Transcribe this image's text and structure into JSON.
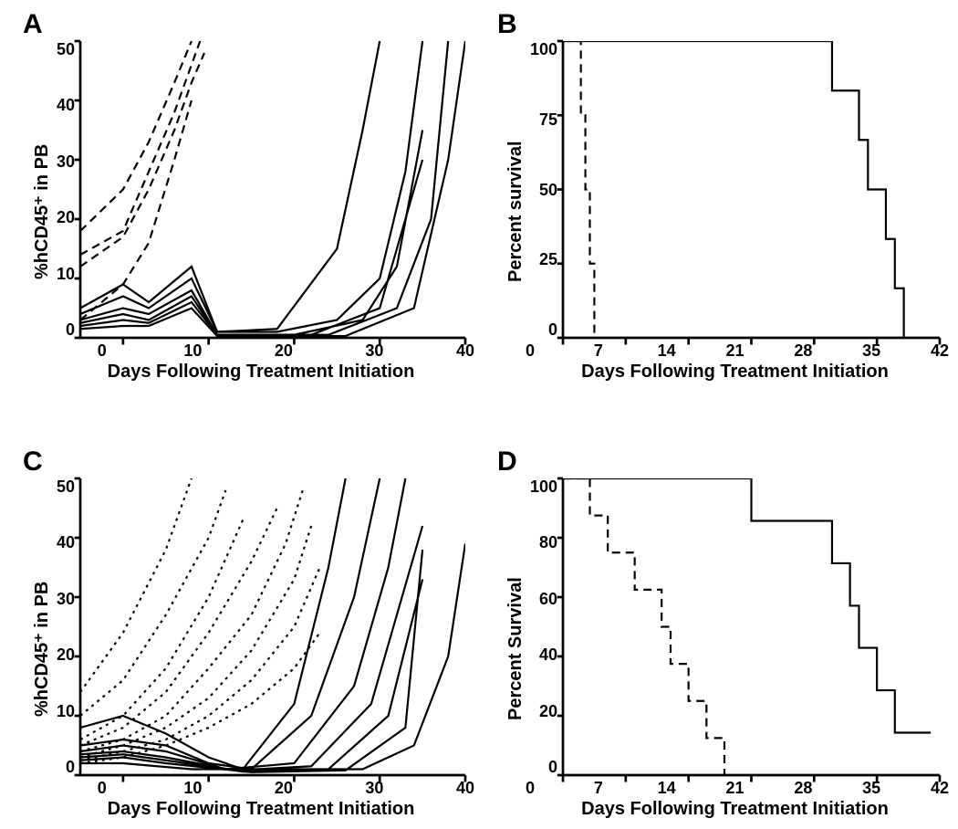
{
  "global": {
    "background_color": "#ffffff",
    "axis_color": "#000000",
    "line_color": "#000000",
    "tick_fontsize": 18,
    "label_fontsize": 20,
    "panel_label_fontsize": 30,
    "font_family": "Arial, Helvetica, sans-serif",
    "font_weight_labels": "bold",
    "line_width_solid": 2.2,
    "line_width_dashed": 2.2,
    "axis_line_width": 2.7,
    "tick_length": 6
  },
  "panels": {
    "A": {
      "label": "A",
      "type": "line",
      "xlabel": "Days Following Treatment Initiation",
      "ylabel": "%hCD45⁺ in PB",
      "xlim": [
        -5,
        40
      ],
      "xticks": [
        0,
        10,
        20,
        30,
        40
      ],
      "ylim": [
        0,
        50
      ],
      "yticks": [
        0,
        10,
        20,
        30,
        40,
        50
      ],
      "series": [
        {
          "style": "dashed",
          "points": [
            [
              -5,
              18
            ],
            [
              0,
              25
            ],
            [
              3,
              33
            ],
            [
              6,
              43
            ],
            [
              8,
              50
            ]
          ]
        },
        {
          "style": "dashed",
          "points": [
            [
              -5,
              14
            ],
            [
              0,
              18
            ],
            [
              3,
              28
            ],
            [
              6,
              38
            ],
            [
              8,
              46
            ],
            [
              9,
              50
            ]
          ]
        },
        {
          "style": "dashed",
          "points": [
            [
              -5,
              12
            ],
            [
              0,
              17
            ],
            [
              3,
              25
            ],
            [
              6,
              35
            ],
            [
              8,
              43
            ],
            [
              9.5,
              48
            ]
          ]
        },
        {
          "style": "dashed",
          "points": [
            [
              -5,
              3
            ],
            [
              0,
              9
            ],
            [
              3,
              16
            ],
            [
              6,
              30
            ],
            [
              8,
              40
            ]
          ]
        },
        {
          "style": "solid",
          "points": [
            [
              -5,
              5
            ],
            [
              0,
              9
            ],
            [
              3,
              6
            ],
            [
              8,
              12
            ],
            [
              11,
              1
            ],
            [
              18,
              1.5
            ],
            [
              25,
              15
            ],
            [
              28,
              35
            ],
            [
              30,
              50
            ]
          ]
        },
        {
          "style": "solid",
          "points": [
            [
              -5,
              4
            ],
            [
              0,
              7
            ],
            [
              3,
              5
            ],
            [
              8,
              10
            ],
            [
              11,
              1
            ],
            [
              18,
              1
            ],
            [
              25,
              3
            ],
            [
              30,
              10
            ],
            [
              33,
              28
            ],
            [
              35,
              50
            ]
          ]
        },
        {
          "style": "solid",
          "points": [
            [
              -5,
              3
            ],
            [
              0,
              5
            ],
            [
              3,
              4
            ],
            [
              8,
              8
            ],
            [
              11,
              0.5
            ],
            [
              20,
              0.5
            ],
            [
              28,
              3
            ],
            [
              32,
              12
            ],
            [
              35,
              35
            ]
          ]
        },
        {
          "style": "solid",
          "points": [
            [
              -5,
              2.5
            ],
            [
              0,
              4
            ],
            [
              3,
              3
            ],
            [
              8,
              7
            ],
            [
              11,
              0.5
            ],
            [
              22,
              0.5
            ],
            [
              30,
              5
            ],
            [
              35,
              30
            ]
          ]
        },
        {
          "style": "solid",
          "points": [
            [
              -5,
              2
            ],
            [
              0,
              3
            ],
            [
              3,
              2.5
            ],
            [
              8,
              6
            ],
            [
              11,
              0.5
            ],
            [
              24,
              0.5
            ],
            [
              32,
              5
            ],
            [
              36,
              20
            ],
            [
              38,
              50
            ]
          ]
        },
        {
          "style": "solid",
          "points": [
            [
              -5,
              1.5
            ],
            [
              0,
              2
            ],
            [
              3,
              2
            ],
            [
              8,
              5
            ],
            [
              11,
              0.3
            ],
            [
              26,
              0.3
            ],
            [
              34,
              5
            ],
            [
              38,
              30
            ],
            [
              40,
              50
            ]
          ]
        }
      ]
    },
    "B": {
      "label": "B",
      "type": "survival",
      "xlabel": "Days Following Treatment Initiation",
      "ylabel": "Percent survival",
      "xlim": [
        0,
        42
      ],
      "xticks": [
        0,
        7,
        14,
        21,
        28,
        35,
        42
      ],
      "ylim": [
        0,
        100
      ],
      "yticks": [
        0,
        25,
        50,
        75,
        100
      ],
      "series": [
        {
          "style": "solid",
          "steps": [
            [
              0,
              100
            ],
            [
              30,
              100
            ],
            [
              30,
              83.3
            ],
            [
              33,
              83.3
            ],
            [
              33,
              66.7
            ],
            [
              34,
              66.7
            ],
            [
              34,
              50
            ],
            [
              36,
              50
            ],
            [
              36,
              33.3
            ],
            [
              37,
              33.3
            ],
            [
              37,
              16.7
            ],
            [
              38,
              16.7
            ],
            [
              38,
              0
            ]
          ]
        },
        {
          "style": "dashed",
          "steps": [
            [
              0,
              100
            ],
            [
              2,
              100
            ],
            [
              2,
              75
            ],
            [
              2.5,
              75
            ],
            [
              2.5,
              50
            ],
            [
              3,
              50
            ],
            [
              3,
              25
            ],
            [
              3.5,
              25
            ],
            [
              3.5,
              0
            ]
          ]
        }
      ]
    },
    "C": {
      "label": "C",
      "type": "line",
      "xlabel": "Days Following Treatment Initiation",
      "ylabel": "%hCD45⁺ in PB",
      "xlim": [
        -5,
        40
      ],
      "xticks": [
        0,
        10,
        20,
        30,
        40
      ],
      "ylim": [
        0,
        50
      ],
      "yticks": [
        0,
        10,
        20,
        30,
        40,
        50
      ],
      "series": [
        {
          "style": "dotted",
          "points": [
            [
              -5,
              14
            ],
            [
              0,
              24
            ],
            [
              5,
              38
            ],
            [
              8,
              50
            ]
          ]
        },
        {
          "style": "dotted",
          "points": [
            [
              -5,
              10
            ],
            [
              0,
              16
            ],
            [
              5,
              27
            ],
            [
              10,
              40
            ],
            [
              12,
              48
            ]
          ]
        },
        {
          "style": "dotted",
          "points": [
            [
              -5,
              6
            ],
            [
              0,
              10
            ],
            [
              5,
              18
            ],
            [
              10,
              30
            ],
            [
              14,
              43
            ]
          ]
        },
        {
          "style": "dotted",
          "points": [
            [
              -5,
              5
            ],
            [
              0,
              8
            ],
            [
              5,
              14
            ],
            [
              10,
              24
            ],
            [
              15,
              36
            ],
            [
              18,
              45
            ]
          ]
        },
        {
          "style": "dotted",
          "points": [
            [
              -5,
              4
            ],
            [
              0,
              6
            ],
            [
              5,
              10
            ],
            [
              10,
              18
            ],
            [
              15,
              27
            ],
            [
              19,
              39
            ],
            [
              21,
              48
            ]
          ]
        },
        {
          "style": "dotted",
          "points": [
            [
              -5,
              3
            ],
            [
              0,
              5
            ],
            [
              5,
              8
            ],
            [
              10,
              13
            ],
            [
              15,
              21
            ],
            [
              20,
              33
            ],
            [
              22,
              42
            ]
          ]
        },
        {
          "style": "dotted",
          "points": [
            [
              -5,
              2.5
            ],
            [
              0,
              4
            ],
            [
              5,
              6
            ],
            [
              10,
              10
            ],
            [
              15,
              16
            ],
            [
              20,
              25
            ],
            [
              23,
              35
            ]
          ]
        },
        {
          "style": "dotted",
          "points": [
            [
              -5,
              2
            ],
            [
              0,
              3
            ],
            [
              5,
              5
            ],
            [
              10,
              8
            ],
            [
              15,
              12
            ],
            [
              20,
              18
            ],
            [
              23,
              24
            ]
          ]
        },
        {
          "style": "solid",
          "points": [
            [
              -5,
              8
            ],
            [
              0,
              10
            ],
            [
              5,
              7
            ],
            [
              10,
              3
            ],
            [
              14,
              1
            ],
            [
              20,
              12
            ],
            [
              24,
              35
            ],
            [
              26,
              50
            ]
          ]
        },
        {
          "style": "solid",
          "points": [
            [
              -5,
              5
            ],
            [
              0,
              6
            ],
            [
              5,
              5
            ],
            [
              10,
              2
            ],
            [
              15,
              1
            ],
            [
              22,
              10
            ],
            [
              27,
              30
            ],
            [
              30,
              50
            ]
          ]
        },
        {
          "style": "solid",
          "points": [
            [
              -5,
              4
            ],
            [
              0,
              5
            ],
            [
              5,
              4
            ],
            [
              12,
              1
            ],
            [
              20,
              2
            ],
            [
              27,
              15
            ],
            [
              31,
              35
            ],
            [
              33,
              50
            ]
          ]
        },
        {
          "style": "solid",
          "points": [
            [
              -5,
              3.5
            ],
            [
              0,
              4
            ],
            [
              5,
              3
            ],
            [
              13,
              0.8
            ],
            [
              22,
              1.5
            ],
            [
              29,
              12
            ],
            [
              33,
              32
            ],
            [
              35,
              42
            ]
          ]
        },
        {
          "style": "solid",
          "points": [
            [
              -5,
              3
            ],
            [
              0,
              3.5
            ],
            [
              5,
              2.5
            ],
            [
              14,
              0.6
            ],
            [
              24,
              1
            ],
            [
              31,
              10
            ],
            [
              35,
              33
            ]
          ]
        },
        {
          "style": "solid",
          "points": [
            [
              -5,
              2.5
            ],
            [
              0,
              3
            ],
            [
              5,
              2
            ],
            [
              15,
              0.5
            ],
            [
              26,
              0.8
            ],
            [
              33,
              8
            ],
            [
              35,
              38
            ]
          ]
        },
        {
          "style": "solid",
          "points": [
            [
              -5,
              2
            ],
            [
              0,
              2
            ],
            [
              8,
              1
            ],
            [
              28,
              1
            ],
            [
              34,
              5
            ],
            [
              38,
              20
            ],
            [
              40,
              39
            ]
          ]
        }
      ]
    },
    "D": {
      "label": "D",
      "type": "survival",
      "xlabel": "Days Following Treatment Initiation",
      "ylabel": "Percent Survival",
      "xlim": [
        0,
        42
      ],
      "xticks": [
        0,
        7,
        14,
        21,
        28,
        35,
        42
      ],
      "ylim": [
        0,
        100
      ],
      "yticks": [
        0,
        20,
        40,
        60,
        80,
        100
      ],
      "series": [
        {
          "style": "solid",
          "steps": [
            [
              0,
              100
            ],
            [
              21,
              100
            ],
            [
              21,
              85.7
            ],
            [
              30,
              85.7
            ],
            [
              30,
              71.4
            ],
            [
              32,
              71.4
            ],
            [
              32,
              57.1
            ],
            [
              33,
              57.1
            ],
            [
              33,
              42.9
            ],
            [
              35,
              42.9
            ],
            [
              35,
              28.6
            ],
            [
              37,
              28.6
            ],
            [
              37,
              14.3
            ],
            [
              41,
              14.3
            ]
          ]
        },
        {
          "style": "dashed",
          "steps": [
            [
              0,
              100
            ],
            [
              3,
              100
            ],
            [
              3,
              87.5
            ],
            [
              5,
              87.5
            ],
            [
              5,
              75
            ],
            [
              8,
              75
            ],
            [
              8,
              62.5
            ],
            [
              11,
              62.5
            ],
            [
              11,
              50
            ],
            [
              12,
              50
            ],
            [
              12,
              37.5
            ],
            [
              14,
              37.5
            ],
            [
              14,
              25
            ],
            [
              16,
              25
            ],
            [
              16,
              12.5
            ],
            [
              18,
              12.5
            ],
            [
              18,
              0
            ]
          ]
        }
      ]
    }
  }
}
